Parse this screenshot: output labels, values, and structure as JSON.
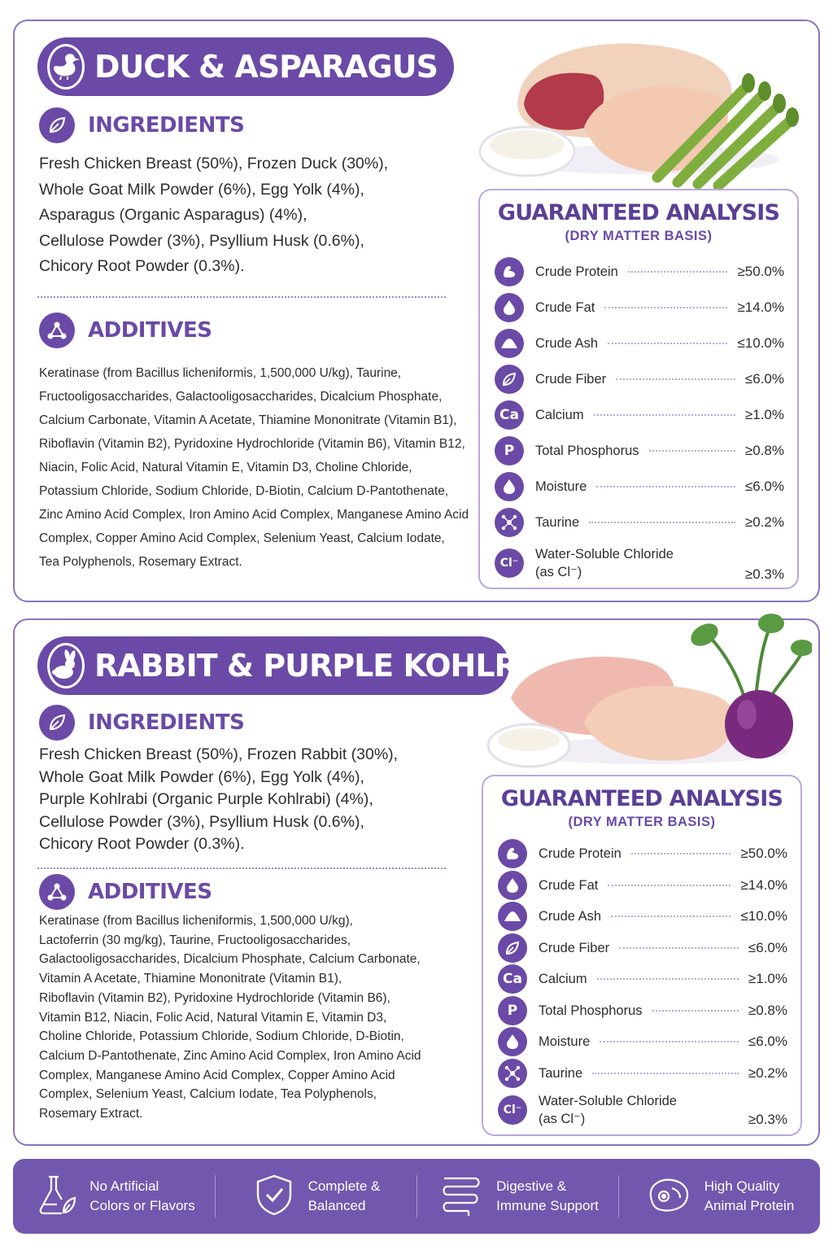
{
  "recipes": [
    {
      "title": "DUCK & ASPARAGUS",
      "title_icon": "duck-icon",
      "ingredients_heading": "INGREDIENTS",
      "ingredients_text": "Fresh Chicken Breast (50%), Frozen Duck (30%),\nWhole Goat Milk Powder (6%), Egg Yolk (4%),\nAsparagus (Organic Asparagus) (4%),\nCellulose Powder (3%), Psyllium Husk (0.6%),\nChicory Root Powder (0.3%).",
      "additives_heading": "ADDITIVES",
      "additives_text": "Keratinase (from Bacillus licheniformis, 1,500,000 U/kg), Taurine,\nFructooligosaccharides, Galactooligosaccharides, Dicalcium Phosphate,\nCalcium Carbonate, Vitamin A Acetate, Thiamine Mononitrate (Vitamin B1),\nRiboflavin (Vitamin B2), Pyridoxine Hydrochloride (Vitamin B6), Vitamin B12,\nNiacin, Folic Acid, Natural Vitamin E, Vitamin D3, Choline Chloride,\nPotassium Chloride, Sodium Chloride, D-Biotin, Calcium D-Pantothenate,\nZinc Amino Acid Complex, Iron Amino Acid Complex, Manganese Amino Acid\nComplex, Copper Amino Acid Complex, Selenium Yeast, Calcium Iodate,\nTea Polyphenols, Rosemary Extract.",
      "analysis_title": "GUARANTEED ANALYSIS",
      "analysis_subtitle": "(DRY MATTER BASIS)",
      "analysis": [
        {
          "icon": "muscle-icon",
          "glyph": "",
          "label": "Crude Protein",
          "value": "≥50.0%"
        },
        {
          "icon": "drop-icon",
          "glyph": "",
          "label": "Crude Fat",
          "value": "≥14.0%"
        },
        {
          "icon": "ash-pile-icon",
          "glyph": "",
          "label": "Crude Ash",
          "value": "≤10.0%"
        },
        {
          "icon": "leaf-icon",
          "glyph": "",
          "label": "Crude Fiber",
          "value": "≤6.0%"
        },
        {
          "icon": "calcium-icon",
          "glyph": "Ca",
          "label": "Calcium",
          "value": "≥1.0%"
        },
        {
          "icon": "phosphorus-icon",
          "glyph": "P",
          "label": "Total Phosphorus",
          "value": "≥0.8%"
        },
        {
          "icon": "water-drop-icon",
          "glyph": "",
          "label": "Moisture",
          "value": "≤6.0%"
        },
        {
          "icon": "molecule-icon",
          "glyph": "",
          "label": "Taurine",
          "value": "≥0.2%"
        },
        {
          "icon": "chloride-icon",
          "glyph": "Cl⁻",
          "label": "Water-Soluble Chloride\n(as Cl⁻)",
          "value": "≥0.3%"
        }
      ]
    },
    {
      "title": "RABBIT & PURPLE KOHLRABI",
      "title_icon": "rabbit-icon",
      "ingredients_heading": "INGREDIENTS",
      "ingredients_text": "Fresh Chicken Breast (50%), Frozen Rabbit (30%),\nWhole Goat Milk Powder (6%), Egg Yolk (4%),\nPurple Kohlrabi (Organic Purple Kohlrabi) (4%),\nCellulose Powder (3%), Psyllium Husk (0.6%),\nChicory Root Powder (0.3%).",
      "additives_heading": "ADDITIVES",
      "additives_text": "Keratinase (from Bacillus licheniformis, 1,500,000 U/kg),\nLactoferrin (30 mg/kg), Taurine, Fructooligosaccharides,\nGalactooligosaccharides, Dicalcium Phosphate, Calcium Carbonate,\nVitamin A Acetate, Thiamine Mononitrate (Vitamin B1),\nRiboflavin (Vitamin B2), Pyridoxine Hydrochloride (Vitamin B6),\nVitamin B12, Niacin, Folic Acid, Natural Vitamin E, Vitamin D3,\nCholine Chloride, Potassium Chloride, Sodium Chloride, D-Biotin,\nCalcium D-Pantothenate, Zinc Amino Acid Complex, Iron Amino Acid\nComplex, Manganese Amino Acid Complex, Copper Amino Acid\nComplex, Selenium Yeast, Calcium Iodate, Tea Polyphenols,\nRosemary Extract.",
      "analysis_title": "GUARANTEED ANALYSIS",
      "analysis_subtitle": "(DRY MATTER BASIS)",
      "analysis": [
        {
          "icon": "muscle-icon",
          "glyph": "",
          "label": "Crude Protein",
          "value": "≥50.0%"
        },
        {
          "icon": "drop-icon",
          "glyph": "",
          "label": "Crude Fat",
          "value": "≥14.0%"
        },
        {
          "icon": "ash-pile-icon",
          "glyph": "",
          "label": "Crude Ash",
          "value": "≤10.0%"
        },
        {
          "icon": "leaf-icon",
          "glyph": "",
          "label": "Crude Fiber",
          "value": "≤6.0%"
        },
        {
          "icon": "calcium-icon",
          "glyph": "Ca",
          "label": "Calcium",
          "value": "≥1.0%"
        },
        {
          "icon": "phosphorus-icon",
          "glyph": "P",
          "label": "Total Phosphorus",
          "value": "≥0.8%"
        },
        {
          "icon": "water-drop-icon",
          "glyph": "",
          "label": "Moisture",
          "value": "≤6.0%"
        },
        {
          "icon": "molecule-icon",
          "glyph": "",
          "label": "Taurine",
          "value": "≥0.2%"
        },
        {
          "icon": "chloride-icon",
          "glyph": "Cl⁻",
          "label": "Water-Soluble Chloride\n(as Cl⁻)",
          "value": "≥0.3%"
        }
      ]
    }
  ],
  "features": [
    {
      "icon": "flask-leaf-icon",
      "label": "No Artificial\nColors or Flavors"
    },
    {
      "icon": "shield-check-icon",
      "label": "Complete &\nBalanced"
    },
    {
      "icon": "intestine-icon",
      "label": "Digestive &\nImmune Support"
    },
    {
      "icon": "meat-steak-icon",
      "label": "High Quality\nAnimal Protein"
    }
  ],
  "colors": {
    "brand_purple": "#6a4aa6",
    "light_purple": "#b9a8dd",
    "footer": "#7257ae"
  }
}
